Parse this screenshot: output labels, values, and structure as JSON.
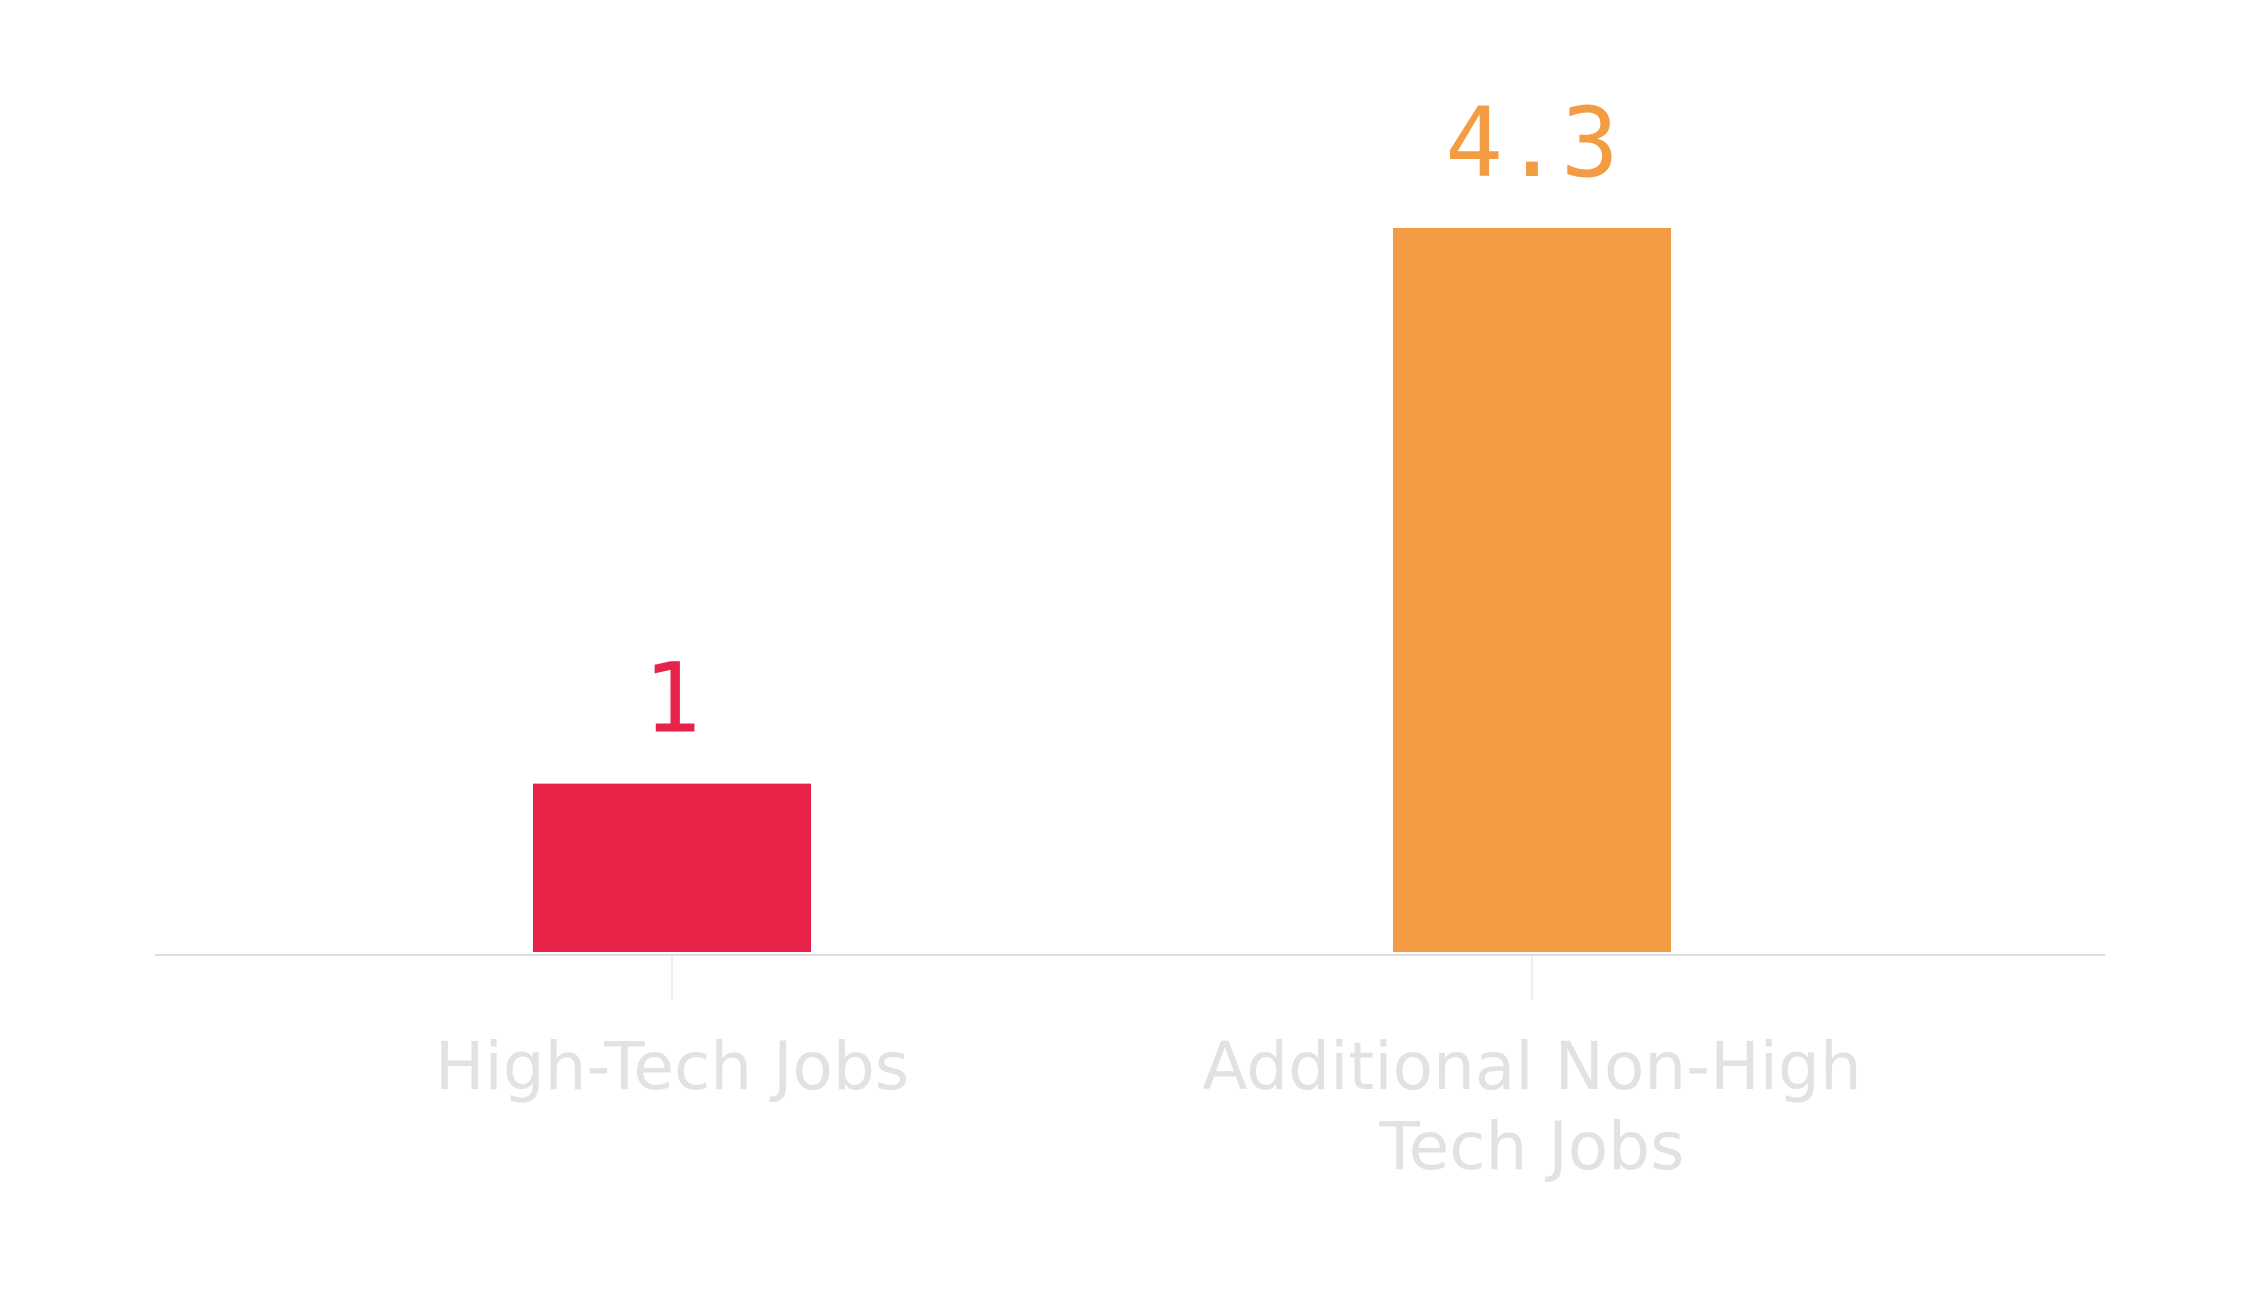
{
  "chart_data": {
    "type": "bar",
    "categories": [
      "High-Tech Jobs",
      "Additional Non-High Tech Jobs"
    ],
    "category_lines": [
      [
        "High-Tech Jobs"
      ],
      [
        "Additional Non-High",
        "Tech Jobs"
      ]
    ],
    "values": [
      1,
      4.3
    ],
    "value_labels": [
      "1",
      "4.3"
    ],
    "colors": [
      "#e8234a",
      "#f39c44"
    ],
    "ylim": [
      0,
      4.3
    ],
    "title": "",
    "xlabel": "",
    "ylabel": "",
    "grid": false,
    "axis_color": "#dddddd",
    "label_color": "#e2e2e2"
  }
}
